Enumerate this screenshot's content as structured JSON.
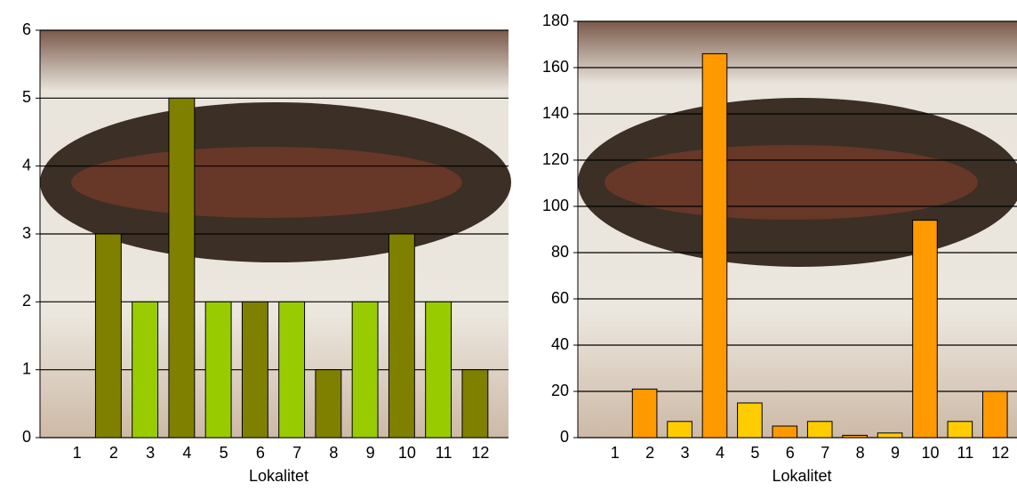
{
  "chart_data": [
    {
      "type": "bar",
      "x_label": "Lokalitet",
      "categories": [
        "1",
        "2",
        "3",
        "4",
        "5",
        "6",
        "7",
        "8",
        "9",
        "10",
        "11",
        "12"
      ],
      "values": [
        0,
        3,
        2,
        5,
        2,
        2,
        2,
        1,
        2,
        3,
        2,
        1
      ],
      "colors": [
        "#99cc00",
        "#808000",
        "#99cc00",
        "#808000",
        "#99cc00",
        "#808000",
        "#99cc00",
        "#808000",
        "#99cc00",
        "#808000",
        "#99cc00",
        "#808000"
      ],
      "ylim": [
        0,
        6
      ],
      "yticks": [
        0,
        1,
        2,
        3,
        4,
        5,
        6
      ],
      "grid": true
    },
    {
      "type": "bar",
      "x_label": "Lokalitet",
      "categories": [
        "1",
        "2",
        "3",
        "4",
        "5",
        "6",
        "7",
        "8",
        "9",
        "10",
        "11",
        "12"
      ],
      "values": [
        0,
        21,
        7,
        166,
        15,
        5,
        7,
        1,
        2,
        94,
        7,
        20
      ],
      "colors": [
        "#ffcc00",
        "#ff9900",
        "#ffcc00",
        "#ff9900",
        "#ffcc00",
        "#ff9900",
        "#ffcc00",
        "#ff9900",
        "#ffcc00",
        "#ff9900",
        "#ffcc00",
        "#ff9900"
      ],
      "ylim": [
        0,
        180
      ],
      "yticks": [
        0,
        20,
        40,
        60,
        80,
        100,
        120,
        140,
        160,
        180
      ],
      "grid": true
    }
  ]
}
